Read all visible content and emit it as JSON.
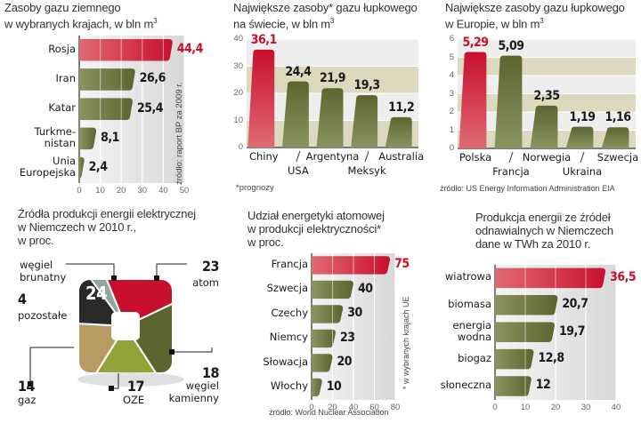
{
  "colors": {
    "red": "#c8102e",
    "red_light": "#e06a74",
    "olive": "#5c6530",
    "olive_light": "#8a9460",
    "band": "#e9e6d6",
    "band2": "#dcd9bf"
  },
  "chart_data": [
    {
      "id": "gas-reserves",
      "type": "bar",
      "orientation": "horizontal",
      "title": "Zasoby gazu ziemnego w wybranych krajach, w bln m³",
      "title_lines": [
        "Zasoby gazu ziemnego",
        "w wybranych krajach, w bln m"
      ],
      "title_sup": "3",
      "categories": [
        "Rosja",
        "Iran",
        "Katar",
        "Turkme-\nnistan",
        "Unia\nEuropejska"
      ],
      "category_lines": [
        [
          "Rosja"
        ],
        [
          "Iran"
        ],
        [
          "Katar"
        ],
        [
          "Turkme-",
          "nistan"
        ],
        [
          "Unia",
          "Europejska"
        ]
      ],
      "values": [
        44.4,
        26.6,
        25.4,
        8.1,
        2.4
      ],
      "value_labels": [
        "44,4",
        "26,6",
        "25,4",
        "8,1",
        "2,4"
      ],
      "highlight": [
        0
      ],
      "xlim": [
        0,
        50
      ],
      "xticks": [
        0,
        10,
        20,
        30,
        40,
        50
      ],
      "source": "źródło: raport BP za 2009 r."
    },
    {
      "id": "shale-world",
      "type": "bar",
      "orientation": "vertical",
      "title_lines": [
        "Największe zasoby* gazu łupkowego",
        "na świecie, w bln m"
      ],
      "title_sup": "3",
      "categories": [
        "Chiny",
        "USA",
        "Argentyna",
        "Meksyk",
        "Australia"
      ],
      "values": [
        36.1,
        24.4,
        21.9,
        19.3,
        11.2
      ],
      "value_labels": [
        "36,1",
        "24,4",
        "21,9",
        "19,3",
        "11,2"
      ],
      "highlight": [
        0
      ],
      "ylim": [
        0,
        40
      ],
      "yticks": [
        0,
        10,
        20,
        30,
        40
      ],
      "footnote": "*prognozy"
    },
    {
      "id": "shale-europe",
      "type": "bar",
      "orientation": "vertical",
      "title_lines": [
        "Największe zasoby gazu łupkowego",
        "w Europie, w bln m"
      ],
      "title_sup": "3",
      "categories": [
        "Polska",
        "Francja",
        "Norwegia",
        "Ukraina",
        "Szwecja"
      ],
      "values": [
        5.29,
        5.09,
        2.35,
        1.19,
        1.16
      ],
      "value_labels": [
        "5,29",
        "5,09",
        "2,35",
        "1,19",
        "1,16"
      ],
      "highlight": [
        0
      ],
      "ylim": [
        0,
        6
      ],
      "yticks": [
        0,
        1,
        2,
        3,
        4,
        5,
        6
      ],
      "source": "źródło: US Energy Information Administration EIA"
    },
    {
      "id": "germany-electricity-sources",
      "type": "pie",
      "title_lines": [
        "Źródła produkcji energii elektrycznej",
        "w Niemczech w 2010 r.,",
        "w proc."
      ],
      "slices": [
        {
          "label": "węgiel brunatny",
          "label_lines": [
            "węgiel",
            "brunatny"
          ],
          "value": 24,
          "color": "#c8102e"
        },
        {
          "label": "atom",
          "label_lines": [
            "atom"
          ],
          "value": 23,
          "color": "#5c6530"
        },
        {
          "label": "węgiel kamienny",
          "label_lines": [
            "węgiel",
            "kamienny"
          ],
          "value": 18,
          "color": "#93a33a"
        },
        {
          "label": "OZE",
          "label_lines": [
            "OZE"
          ],
          "value": 17,
          "color": "#b89a62"
        },
        {
          "label": "gaz",
          "label_lines": [
            "gaz"
          ],
          "value": 14,
          "color": "#2a2a2a"
        },
        {
          "label": "pozostałe",
          "label_lines": [
            "pozostałe"
          ],
          "value": 4,
          "color": "#8fa89a"
        }
      ]
    },
    {
      "id": "nuclear-share",
      "type": "bar",
      "orientation": "horizontal",
      "title_lines": [
        "Udział energetyki atomowej",
        "w produkcji elektryczności*",
        "w proc."
      ],
      "categories": [
        "Francja",
        "Szwecja",
        "Czechy",
        "Niemcy",
        "Słowacja",
        "Włochy"
      ],
      "values": [
        75,
        40,
        30,
        23,
        20,
        10
      ],
      "value_labels": [
        "75",
        "40",
        "30",
        "23",
        "20",
        "10"
      ],
      "highlight": [
        0
      ],
      "xlim": [
        0,
        80
      ],
      "xticks": [
        0,
        20,
        40,
        60,
        80
      ],
      "side_note": "* w wybranych krajach UE",
      "source": "źródło: World Nuclear Association"
    },
    {
      "id": "renewables-germany",
      "type": "bar",
      "orientation": "horizontal",
      "title_lines": [
        "Produkcja energii ze źródeł",
        "odnawialnych w Niemczech",
        "dane w TWh za 2010 r."
      ],
      "categories": [
        "wiatrowa",
        "biomasa",
        "energia wodna",
        "biogaz",
        "słoneczna"
      ],
      "category_lines": [
        [
          "wiatrowa"
        ],
        [
          "biomasa"
        ],
        [
          "energia",
          "wodna"
        ],
        [
          "biogaz"
        ],
        [
          "słoneczna"
        ]
      ],
      "values": [
        36.5,
        20.7,
        19.7,
        12.8,
        12
      ],
      "value_labels": [
        "36,5",
        "20,7",
        "19,7",
        "12,8",
        "12"
      ],
      "highlight": [
        0
      ],
      "xlim": [
        0,
        40
      ],
      "xticks": [
        0,
        10,
        20,
        30,
        40
      ]
    }
  ]
}
